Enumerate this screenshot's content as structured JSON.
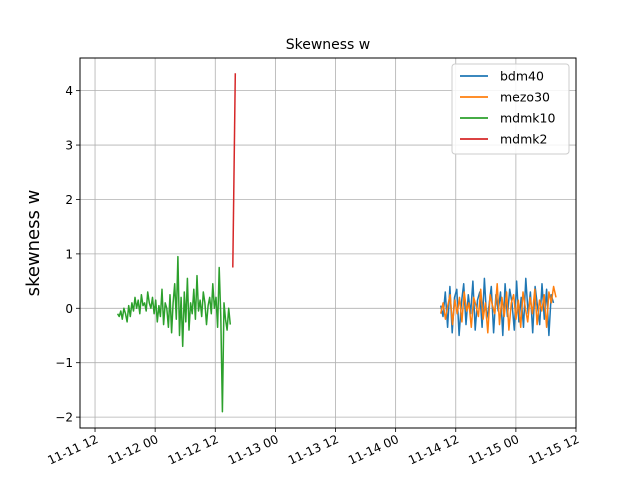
{
  "chart_data": {
    "type": "line",
    "title": "Skewness w",
    "xlabel": "",
    "ylabel": "skewness w",
    "x_axis": {
      "kind": "datetime",
      "ticks": [
        "11-11 12",
        "11-12 00",
        "11-12 12",
        "11-13 00",
        "11-13 12",
        "11-14 00",
        "11-14 12",
        "11-15 00",
        "11-15 12"
      ],
      "xlim": [
        "11-11 09:00",
        "11-15 12:00"
      ]
    },
    "y_axis": {
      "ticks": [
        -2,
        -1,
        0,
        1,
        2,
        3,
        4
      ],
      "tick_labels": [
        "−2",
        "−1",
        "0",
        "1",
        "2",
        "3",
        "4"
      ],
      "ylim": [
        -2.2,
        4.6
      ]
    },
    "grid": true,
    "legend_position": "top-right",
    "series": [
      {
        "name": "bdm40",
        "color": "#1f77b4",
        "time_range": [
          "11-14 09:00",
          "11-15 07:30"
        ],
        "approx_values": [
          0.05,
          -0.15,
          0.3,
          -0.35,
          0.4,
          -0.45,
          0.2,
          0.35,
          -0.5,
          0.1,
          0.45,
          -0.3,
          0.25,
          -0.1,
          0.5,
          -0.4,
          0.15,
          0.3,
          -0.35,
          0.55,
          -0.2,
          0.05,
          0.4,
          -0.45,
          0.25,
          -0.05,
          0.3,
          -0.5,
          0.45,
          -0.15,
          0.35,
          0.1,
          -0.4,
          0.5,
          -0.25,
          0.2,
          -0.35,
          0.55,
          -0.1,
          0.3,
          -0.45,
          0.4,
          0.05,
          -0.3,
          0.45,
          -0.2,
          0.35,
          -0.5,
          0.25,
          0.1
        ]
      },
      {
        "name": "mezo30",
        "color": "#ff7f0e",
        "time_range": [
          "11-14 09:00",
          "11-15 08:00"
        ],
        "approx_values": [
          -0.1,
          0.1,
          -0.2,
          0.05,
          0.25,
          -0.3,
          0.15,
          -0.1,
          0.2,
          -0.25,
          0.3,
          -0.05,
          0.1,
          -0.35,
          0.2,
          0.05,
          -0.15,
          0.35,
          -0.2,
          0.1,
          -0.45,
          0.25,
          0.05,
          -0.1,
          0.45,
          -0.3,
          0.2,
          -0.15,
          0.3,
          -0.4,
          0.1,
          0.25,
          -0.2,
          0.15,
          -0.35,
          0.3,
          0.0,
          -0.25,
          0.2,
          -0.1,
          0.35,
          -0.3,
          0.15,
          -0.05,
          0.25,
          -0.35,
          0.3,
          0.1,
          0.4,
          0.2
        ]
      },
      {
        "name": "mdmk10",
        "color": "#2ca02c",
        "time_range": [
          "11-11 16:30",
          "11-12 15:00"
        ],
        "approx_values": [
          -0.1,
          -0.15,
          -0.05,
          -0.2,
          0.0,
          -0.1,
          -0.25,
          0.05,
          -0.15,
          0.1,
          -0.05,
          0.2,
          0.0,
          0.15,
          -0.1,
          0.25,
          0.05,
          0.1,
          -0.05,
          0.3,
          0.1,
          0.0,
          0.2,
          -0.1,
          0.15,
          -0.25,
          0.05,
          -0.15,
          0.35,
          -0.3,
          0.1,
          0.0,
          -0.35,
          0.25,
          -0.45,
          0.1,
          0.45,
          -0.2,
          0.95,
          -0.5,
          0.2,
          -0.7,
          0.3,
          -0.25,
          0.55,
          -0.4,
          0.1,
          -0.1,
          0.35,
          -0.2,
          0.6,
          -0.05,
          0.15,
          -0.15,
          0.3,
          0.1,
          -0.3,
          0.05,
          0.2,
          -0.1,
          0.45,
          0.0,
          0.2,
          -0.35,
          0.75,
          -0.15,
          -1.9,
          0.1,
          -0.2,
          -0.4,
          0.0,
          -0.3
        ]
      },
      {
        "name": "mdmk2",
        "color": "#d62728",
        "time_range": [
          "11-12 15:30",
          "11-12 16:00"
        ],
        "approx_values": [
          0.75,
          4.32
        ]
      }
    ]
  }
}
